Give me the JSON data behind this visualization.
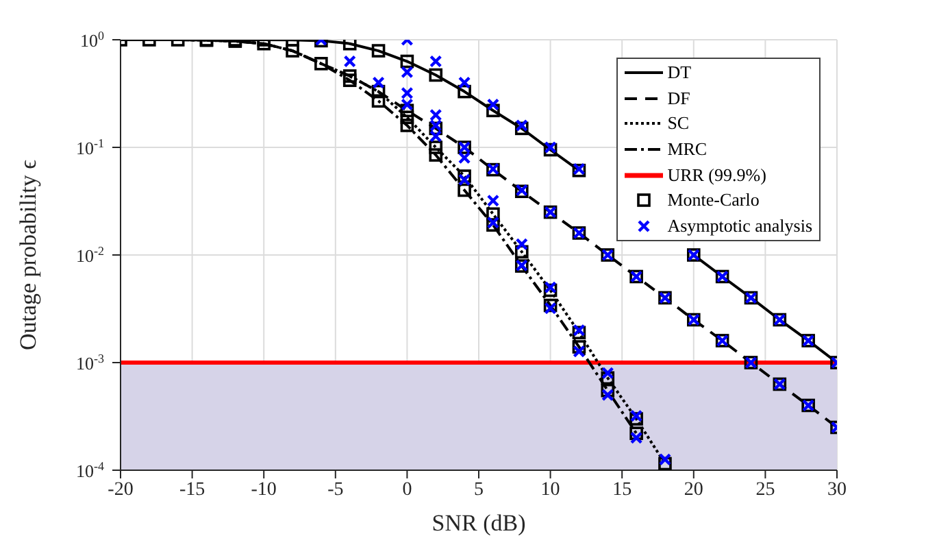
{
  "chart_data": {
    "type": "line",
    "xlabel": "SNR (dB)",
    "ylabel": "Outage probability ϵ",
    "log": "y",
    "grid": true,
    "legend": "top right",
    "xlim": [
      -20,
      30
    ],
    "xticks": [
      -20,
      -15,
      -10,
      -5,
      0,
      5,
      10,
      15,
      20,
      25,
      30
    ],
    "ylim": [
      0.0001,
      1
    ],
    "yticks": [
      {
        "value": 0.0001,
        "label": "10$^{-4}$"
      },
      {
        "value": 0.001,
        "label": "10$^{-3}$"
      },
      {
        "value": 0.01,
        "label": "10$^{-2}$"
      },
      {
        "value": 0.1,
        "label": "10$^{-1}$"
      },
      {
        "value": 1,
        "label": "10$^{0}$"
      }
    ],
    "series": [
      {
        "name": "DT",
        "color": "#000000",
        "line_style": "solid",
        "marker": "none",
        "x": [
          -20,
          -18,
          -16,
          -14,
          -12,
          -10,
          -8,
          -6,
          -4,
          -2,
          0,
          2,
          4,
          6,
          8,
          10,
          12,
          14,
          16,
          18,
          20,
          22,
          24,
          26,
          28,
          30
        ],
        "values": [
          1,
          1,
          1,
          1,
          1,
          1,
          0.998,
          0.98,
          0.92,
          0.79,
          0.63,
          0.47,
          0.33,
          0.22,
          0.15,
          0.095,
          0.061,
          null,
          null,
          null,
          0.01,
          0.0063,
          0.004,
          0.0025,
          0.0016,
          0.001
        ]
      },
      {
        "name": "DF",
        "color": "#000000",
        "line_style": "dashed",
        "marker": "none",
        "x": [
          -20,
          -18,
          -16,
          -14,
          -12,
          -10,
          -8,
          -6,
          -4,
          -2,
          0,
          2,
          4,
          6,
          8,
          10,
          12,
          14,
          16,
          18,
          20,
          22,
          24,
          26,
          28,
          30
        ],
        "values": [
          1,
          1,
          1,
          0.99,
          0.97,
          0.92,
          0.79,
          0.6,
          0.46,
          0.33,
          0.22,
          0.15,
          0.1,
          0.062,
          0.039,
          0.025,
          0.016,
          0.01,
          0.0063,
          0.004,
          0.0025,
          0.0016,
          0.001,
          0.00063,
          0.0004,
          0.00025
        ]
      },
      {
        "name": "SC",
        "color": "#000000",
        "line_style": "dotted",
        "marker": "none",
        "x": [
          -20,
          -18,
          -16,
          -14,
          -12,
          -10,
          -8,
          -6,
          -4,
          -2,
          0,
          2,
          4,
          6,
          8,
          10,
          12,
          14,
          16,
          18
        ],
        "values": [
          1,
          1,
          1,
          0.99,
          0.97,
          0.92,
          0.79,
          0.6,
          0.46,
          0.33,
          0.19,
          0.1,
          0.054,
          0.024,
          0.0107,
          0.0047,
          0.0019,
          0.00072,
          0.0003,
          0.000115
        ]
      },
      {
        "name": "MRC",
        "color": "#000000",
        "line_style": "dashdot",
        "marker": "none",
        "x": [
          -20,
          -18,
          -16,
          -14,
          -12,
          -10,
          -8,
          -6,
          -4,
          -2,
          0,
          2,
          4,
          6,
          8,
          10,
          12,
          14,
          16
        ],
        "values": [
          1,
          1,
          1,
          0.99,
          0.97,
          0.92,
          0.79,
          0.6,
          0.42,
          0.27,
          0.16,
          0.085,
          0.04,
          0.019,
          0.0079,
          0.0034,
          0.0014,
          0.00055,
          0.00022
        ]
      },
      {
        "name": "Monte-Carlo",
        "type": "scatter",
        "color": "#000000",
        "marker": "square",
        "x": [
          -20,
          -18,
          -16,
          -14,
          -12,
          -10,
          -8,
          -6,
          -4,
          -2,
          0,
          2,
          4,
          6,
          8,
          10,
          12,
          20,
          22,
          24,
          26,
          28,
          30,
          -14,
          -12,
          -10,
          -8,
          -6,
          -4,
          -2,
          0,
          2,
          4,
          6,
          8,
          10,
          12,
          14,
          16,
          18,
          20,
          22,
          24,
          26,
          28,
          30,
          0,
          2,
          4,
          6,
          8,
          10,
          12,
          14,
          16,
          18,
          -4,
          -2,
          0,
          2,
          4,
          6,
          8,
          10,
          12,
          14,
          16
        ],
        "values": [
          1,
          1,
          1,
          1,
          1,
          1,
          0.998,
          0.98,
          0.92,
          0.79,
          0.63,
          0.47,
          0.33,
          0.22,
          0.15,
          0.095,
          0.061,
          0.01,
          0.0063,
          0.004,
          0.0025,
          0.0016,
          0.001,
          0.99,
          0.97,
          0.92,
          0.79,
          0.6,
          0.46,
          0.33,
          0.22,
          0.15,
          0.1,
          0.062,
          0.039,
          0.025,
          0.016,
          0.01,
          0.0063,
          0.004,
          0.0025,
          0.0016,
          0.001,
          0.00063,
          0.0004,
          0.00025,
          0.19,
          0.1,
          0.054,
          0.024,
          0.0107,
          0.0047,
          0.0019,
          0.00072,
          0.0003,
          0.000115,
          0.42,
          0.27,
          0.16,
          0.085,
          0.04,
          0.019,
          0.0079,
          0.0034,
          0.0014,
          0.00055,
          0.00022
        ]
      },
      {
        "name": "Asymptotic analysis",
        "type": "scatter",
        "color": "#0000ff",
        "marker": "cross",
        "x": [
          0,
          2,
          4,
          6,
          8,
          10,
          12,
          20,
          22,
          24,
          26,
          28,
          30,
          -6,
          -4,
          -2,
          0,
          2,
          4,
          6,
          8,
          10,
          12,
          14,
          16,
          18,
          20,
          22,
          24,
          26,
          28,
          30,
          0,
          2,
          4,
          6,
          8,
          10,
          12,
          14,
          16,
          18,
          0,
          2,
          4,
          6,
          8,
          10,
          12,
          14,
          16
        ],
        "values": [
          1,
          0.63,
          0.4,
          0.25,
          0.16,
          0.1,
          0.063,
          0.01,
          0.0063,
          0.004,
          0.0025,
          0.0016,
          0.001,
          1,
          0.63,
          0.4,
          0.25,
          0.16,
          0.1,
          0.063,
          0.04,
          0.025,
          0.016,
          0.01,
          0.0063,
          0.004,
          0.0025,
          0.0016,
          0.001,
          0.00063,
          0.0004,
          0.00025,
          0.5,
          0.2,
          0.08,
          0.032,
          0.0126,
          0.005,
          0.002,
          0.0008,
          0.00032,
          0.000126,
          0.32,
          0.127,
          0.05,
          0.02,
          0.008,
          0.0032,
          0.00127,
          0.0005,
          0.0002
        ]
      }
    ],
    "ref_lines": [
      {
        "axis": "y",
        "value": 0.001,
        "label": "URR (99.9%)",
        "color": "#ff0000"
      }
    ],
    "bands": [
      {
        "axis": "y",
        "from": 0.0001,
        "to": 0.001,
        "color": "#d6d3e8"
      }
    ]
  }
}
